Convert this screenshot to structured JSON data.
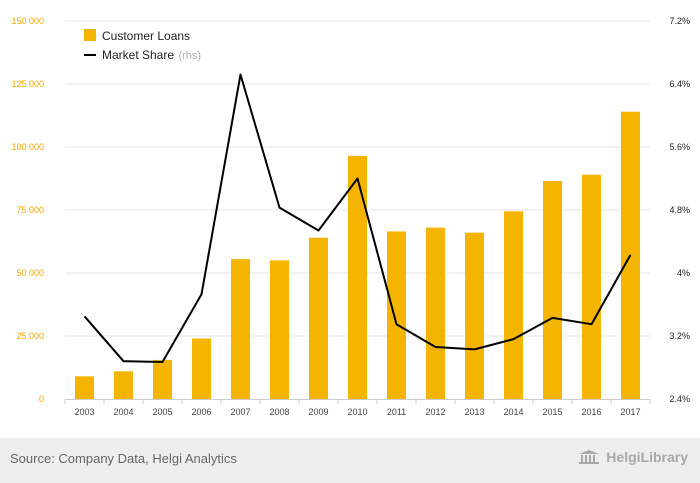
{
  "chart_data": {
    "type": "bar",
    "categories": [
      "2003",
      "2004",
      "2005",
      "2006",
      "2007",
      "2008",
      "2009",
      "2010",
      "2011",
      "2012",
      "2013",
      "2014",
      "2015",
      "2016",
      "2017"
    ],
    "series": [
      {
        "name": "Customer Loans",
        "type": "bar",
        "axis": "left",
        "color": "#f5b400",
        "values": [
          9000,
          11000,
          15500,
          24000,
          55500,
          55000,
          64000,
          96500,
          66500,
          68000,
          66000,
          74500,
          86500,
          89000,
          114000
        ]
      },
      {
        "name": "Market Share",
        "type": "line",
        "axis": "right",
        "color": "#000000",
        "values": [
          3.45,
          2.88,
          2.87,
          3.73,
          6.52,
          4.83,
          4.54,
          5.2,
          3.35,
          3.06,
          3.03,
          3.16,
          3.43,
          3.35,
          4.23
        ]
      }
    ],
    "y_left": {
      "min": 0,
      "max": 150000,
      "ticks": [
        "0",
        "25 000",
        "50 000",
        "75 000",
        "100 000",
        "125 000",
        "150 000"
      ]
    },
    "y_right": {
      "min": 2.4,
      "max": 7.2,
      "ticks": [
        "2.4%",
        "3.2%",
        "4%",
        "4.8%",
        "5.6%",
        "6.4%",
        "7.2%"
      ]
    },
    "legend": {
      "placement": "top-left",
      "items": [
        {
          "label": "Customer Loans",
          "marker": "square",
          "color": "#f5b400"
        },
        {
          "label": "Market Share",
          "suffix": "(rhs)",
          "marker": "line",
          "color": "#000000"
        }
      ]
    },
    "grid": true
  },
  "footer": {
    "source": "Source: Company Data, Helgi Analytics",
    "brand": "HelgiLibrary",
    "brand_icon": "library-building-icon"
  }
}
